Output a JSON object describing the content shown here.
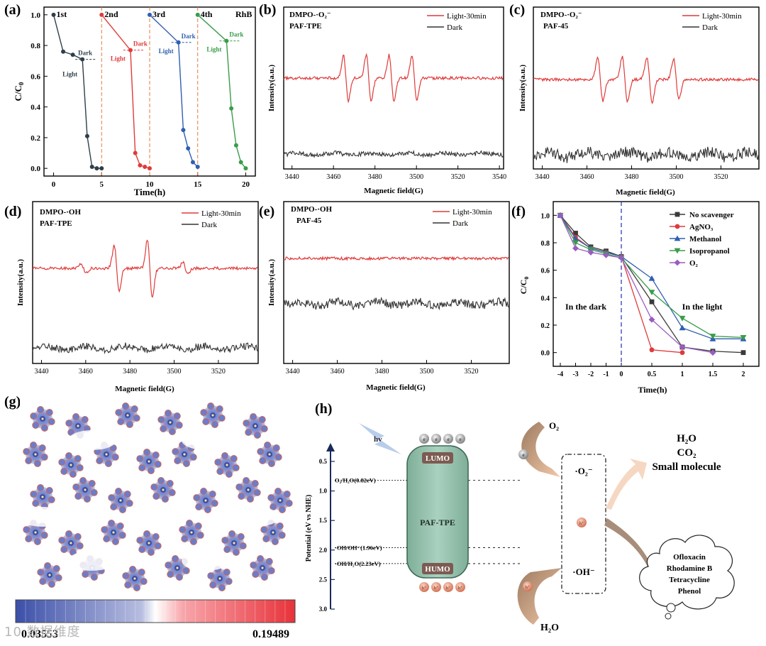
{
  "panels": {
    "a": {
      "label": "(a)"
    },
    "b": {
      "label": "(b)"
    },
    "c": {
      "label": "(c)"
    },
    "d": {
      "label": "(d)"
    },
    "e": {
      "label": "(e)"
    },
    "f": {
      "label": "(f)"
    },
    "g": {
      "label": "(g)"
    },
    "h": {
      "label": "(h)"
    }
  },
  "chart_data": [
    {
      "panel": "a",
      "type": "line",
      "xlabel": "Time(h)",
      "ylabel": "C/C0",
      "xlim": [
        -1,
        21
      ],
      "ylim": [
        -0.05,
        1.05
      ],
      "xticks": [
        0,
        5,
        10,
        15,
        20
      ],
      "yticks": [
        0.0,
        0.2,
        0.4,
        0.6,
        0.8,
        1.0
      ],
      "cycle_labels": [
        "1st",
        "2nd",
        "3rd",
        "4th"
      ],
      "corner_label": "RhB",
      "dark_label": "Dark",
      "light_label": "Light",
      "cycle_boundaries": [
        5,
        10,
        15
      ],
      "series": [
        {
          "name": "1st",
          "color": "#2f3f4a",
          "x": [
            0,
            1,
            2,
            3,
            3.5,
            4,
            4.5,
            5
          ],
          "y": [
            1.0,
            0.76,
            0.74,
            0.71,
            0.21,
            0.01,
            0.0,
            0.0
          ]
        },
        {
          "name": "2nd",
          "color": "#e03a3a",
          "x": [
            5,
            8,
            8.5,
            9,
            9.5,
            10
          ],
          "y": [
            1.0,
            0.77,
            0.1,
            0.02,
            0.01,
            0.0
          ]
        },
        {
          "name": "3rd",
          "color": "#2f5fb0",
          "x": [
            10,
            13,
            13.5,
            14,
            14.5,
            15
          ],
          "y": [
            1.0,
            0.82,
            0.25,
            0.13,
            0.04,
            0.01
          ]
        },
        {
          "name": "4th",
          "color": "#3a9c4a",
          "x": [
            15,
            18,
            18.5,
            19,
            19.5,
            20
          ],
          "y": [
            1.0,
            0.83,
            0.39,
            0.15,
            0.04,
            0.0
          ]
        }
      ]
    },
    {
      "panel": "b",
      "type": "line",
      "title_line1": "DMPO-·O₂⁻",
      "title_line2": "PAF-TPE",
      "xlabel": "Magnetic field(G)",
      "ylabel": "Intensity(a.u.)",
      "xlim": [
        3436,
        3542
      ],
      "xticks": [
        3440,
        3460,
        3480,
        3500,
        3520,
        3540
      ],
      "legend": [
        "Light-30min",
        "Dark"
      ],
      "peaks": [
        3466,
        3477,
        3488,
        3499
      ]
    },
    {
      "panel": "c",
      "type": "line",
      "title_line1": "DMPO-·O₂⁻",
      "title_line2": "PAF-45",
      "xlabel": "Magnetic field(G)",
      "ylabel": "Intensity(a.u.)",
      "xlim": [
        3436,
        3537
      ],
      "xticks": [
        3440,
        3460,
        3480,
        3500,
        3520
      ],
      "legend": [
        "Light-30min",
        "Dark"
      ],
      "peaks": [
        3466,
        3477,
        3488,
        3500
      ]
    },
    {
      "panel": "d",
      "type": "line",
      "title_line1": "DMPO-·OH",
      "title_line2": "PAF-TPE",
      "xlabel": "Magnetic field(G)",
      "ylabel": "Intensity(a.u.)",
      "xlim": [
        3436,
        3538
      ],
      "xticks": [
        3440,
        3460,
        3480,
        3500,
        3520
      ],
      "legend": [
        "Light-30min",
        "Dark"
      ],
      "peaks": [
        3459,
        3474,
        3489,
        3505
      ]
    },
    {
      "panel": "e",
      "type": "line",
      "title_line1": "DMPO-·OH",
      "title_line2": "PAF-45",
      "xlabel": "Magnetic field(G)",
      "ylabel": "Intensity(a.u.)",
      "xlim": [
        3436,
        3537
      ],
      "xticks": [
        3440,
        3460,
        3480,
        3500,
        3520
      ],
      "legend": [
        "Light-30min",
        "Dark"
      ]
    },
    {
      "panel": "f",
      "type": "line",
      "xlabel": "Time(h)",
      "ylabel": "C/C0",
      "xlim": [
        -4.3,
        2.3
      ],
      "ylim": [
        -0.1,
        1.1
      ],
      "xticks": [
        -4,
        -3,
        -2,
        -1,
        0,
        0.5,
        1,
        1.5,
        2
      ],
      "xtick_labels": [
        "-4",
        "-3",
        "-2",
        "-1",
        "0",
        "0.5",
        "1",
        "1.5",
        "2"
      ],
      "xtick_positions": [
        -4,
        -3,
        -2,
        -1,
        0,
        0.5,
        1,
        1.5,
        2
      ],
      "yticks": [
        0.0,
        0.2,
        0.4,
        0.6,
        0.8,
        1.0
      ],
      "region_dark": "In the dark",
      "region_light": "In the light",
      "series": [
        {
          "name": "No scavenger",
          "color": "#3a3a3a",
          "marker": "square",
          "x": [
            -4,
            -3,
            -2,
            -1,
            0,
            0.5,
            1,
            1.5,
            2
          ],
          "y": [
            1.0,
            0.87,
            0.77,
            0.74,
            0.7,
            0.37,
            0.04,
            0.01,
            0.0
          ]
        },
        {
          "name": "AgNO₃",
          "color": "#e03a3a",
          "marker": "circle",
          "x": [
            -4,
            -3,
            -2,
            -1,
            0,
            0.5,
            1
          ],
          "y": [
            1.0,
            0.84,
            0.76,
            0.73,
            0.7,
            0.02,
            0.0
          ]
        },
        {
          "name": "Methanol",
          "color": "#2f5fb0",
          "marker": "triangle",
          "x": [
            -4,
            -3,
            -2,
            -1,
            0,
            0.5,
            1,
            1.5,
            2
          ],
          "y": [
            1.0,
            0.83,
            0.76,
            0.73,
            0.7,
            0.54,
            0.18,
            0.1,
            0.1
          ]
        },
        {
          "name": "Isopropanol",
          "color": "#3a9c4a",
          "marker": "triangle-down",
          "x": [
            -4,
            -3,
            -2,
            -1,
            0,
            0.5,
            1,
            1.5,
            2
          ],
          "y": [
            1.0,
            0.8,
            0.75,
            0.72,
            0.69,
            0.44,
            0.25,
            0.12,
            0.11
          ]
        },
        {
          "name": "O₂",
          "color": "#9a5cc0",
          "marker": "diamond",
          "x": [
            -4,
            -3,
            -2,
            -1,
            0,
            0.5,
            1,
            1.5
          ],
          "y": [
            1.0,
            0.76,
            0.73,
            0.71,
            0.69,
            0.24,
            0.04,
            0.0
          ]
        }
      ]
    },
    {
      "panel": "g",
      "type": "heatmap",
      "colorbar_min": "0.03553",
      "colorbar_max": "0.19489"
    }
  ],
  "diagram_h": {
    "axis_label": "Potential (eV vs NHE)",
    "axis_ticks": [
      "0.5",
      "1.0",
      "1.5",
      "2.0",
      "2.5",
      "3.0"
    ],
    "axis_tick_values": [
      0.5,
      1.0,
      1.5,
      2.0,
      2.5,
      3.0
    ],
    "light_label": "hv",
    "material": "PAF-TPE",
    "lumo": "LUMO",
    "humo": "HUMO",
    "electron": "e",
    "hole": "h⁺",
    "levels": [
      {
        "text": "O₂/H₂O(0.82eV)",
        "value": 0.82
      },
      {
        "text": "·OH/OH⁻(1.96eV)",
        "value": 1.96
      },
      {
        "text": "·OH/H₂O(2.23eV)",
        "value": 2.23
      }
    ],
    "o2": "O₂",
    "superoxide": "·O₂⁻",
    "hydroxyl": "·OH⁻",
    "h2o": "H₂O",
    "products": [
      "H₂O",
      "CO₂",
      "Small molecule"
    ],
    "pollutants": [
      "Ofloxacin",
      "Rhodamine B",
      "Tetracycline",
      "Phenol"
    ]
  },
  "watermark": "10 数据维度"
}
